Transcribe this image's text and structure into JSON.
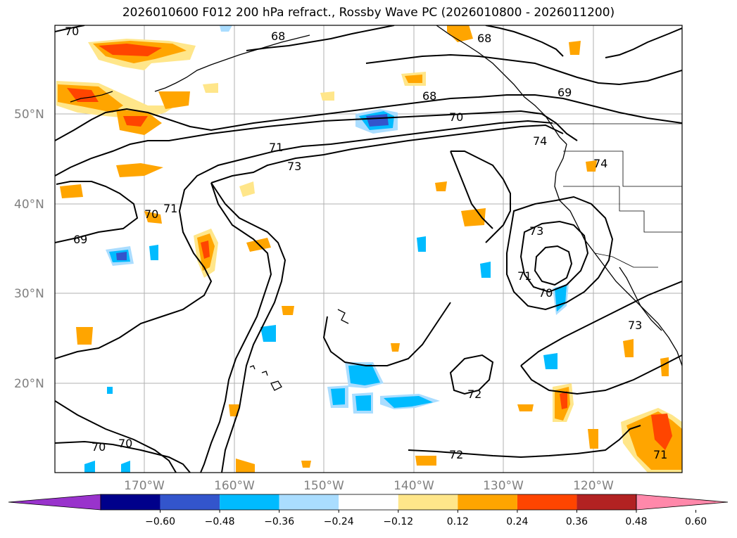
{
  "title": "2026010600 F012 200 hPa refract., Rossby Wave PC (2026010800 - 2026011200)",
  "lat_labels": [
    "50°N",
    "40°N",
    "30°N",
    "20°N"
  ],
  "lon_labels": [
    "170°W",
    "160°W",
    "150°W",
    "140°W",
    "130°W",
    "120°W"
  ],
  "colorbar": {
    "ticks": [
      "−0.60",
      "−0.48",
      "−0.36",
      "−0.24",
      "−0.12",
      "0.12",
      "0.24",
      "0.36",
      "0.48",
      "0.60"
    ],
    "colors": [
      "#9933cc",
      "#00008b",
      "#3355cc",
      "#00bbff",
      "#aaddff",
      "#ffffff",
      "#ffe68a",
      "#ffa500",
      "#ff4500",
      "#b22222",
      "#ff88aa"
    ]
  },
  "contour_labels": [
    "70",
    "68",
    "68",
    "69",
    "68",
    "70",
    "71",
    "73",
    "74",
    "74",
    "71",
    "70",
    "69",
    "73",
    "71",
    "70",
    "73",
    "72",
    "70",
    "70",
    "72",
    "71"
  ]
}
